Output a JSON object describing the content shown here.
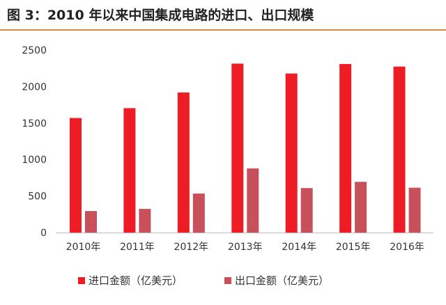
{
  "header": {
    "title": "图 3：2010 年以来中国集成电路的进口、出口规模",
    "rule_color": "#e0873a"
  },
  "chart_data": {
    "type": "bar",
    "categories": [
      "2010年",
      "2011年",
      "2012年",
      "2013年",
      "2014年",
      "2015年",
      "2016年"
    ],
    "series": [
      {
        "name": "进口金额（亿美元）",
        "color": "#ee1c25",
        "values": [
          1570,
          1705,
          1920,
          2315,
          2180,
          2310,
          2275
        ]
      },
      {
        "name": "出口金额（亿美元）",
        "color": "#c8505a",
        "values": [
          295,
          325,
          535,
          880,
          610,
          695,
          615
        ]
      }
    ],
    "title": "",
    "xlabel": "",
    "ylabel": "",
    "ylim": [
      0,
      2500
    ],
    "yticks": [
      0,
      500,
      1000,
      1500,
      2000,
      2500
    ],
    "grid": false,
    "legend": "bottom"
  }
}
